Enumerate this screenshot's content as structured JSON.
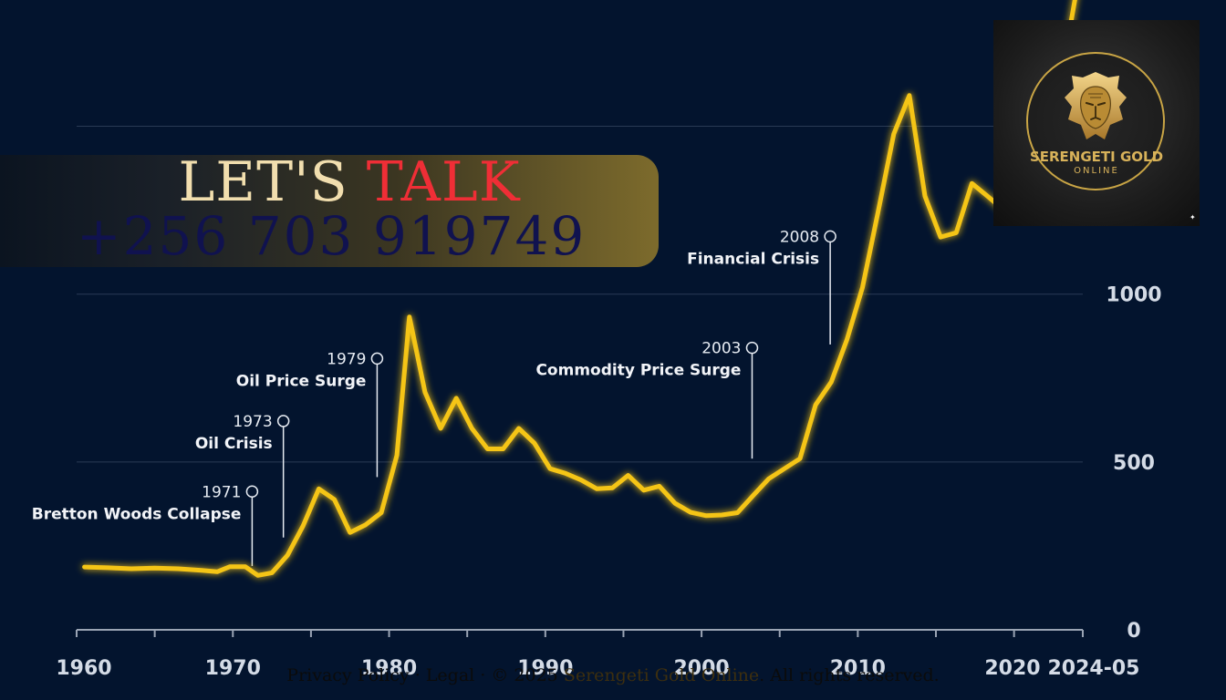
{
  "chart_data": {
    "type": "line",
    "title": "",
    "xlabel": "",
    "ylabel": "",
    "xlim": [
      1960,
      2024.4
    ],
    "ylim": [
      0,
      1500
    ],
    "x_ticks": [
      {
        "value": 1960,
        "label": "1960"
      },
      {
        "value": 1970,
        "label": "1970"
      },
      {
        "value": 1980,
        "label": "1980"
      },
      {
        "value": 1990,
        "label": "1990"
      },
      {
        "value": 2000,
        "label": "2000"
      },
      {
        "value": 2010,
        "label": "2010"
      },
      {
        "value": 2020,
        "label": "2020"
      },
      {
        "value": 2024.4,
        "label": "2024-05"
      }
    ],
    "y_ticks": [
      {
        "value": 0,
        "label": "0"
      },
      {
        "value": 500,
        "label": "500"
      },
      {
        "value": 1000,
        "label": "1000"
      }
    ],
    "grid": true,
    "line_color": "#f5c518",
    "series": [
      {
        "values": [
          [
            1960.5,
            187
          ],
          [
            1962,
            185
          ],
          [
            1963.5,
            182
          ],
          [
            1965,
            184
          ],
          [
            1966.5,
            182
          ],
          [
            1968,
            177
          ],
          [
            1969,
            173
          ],
          [
            1969.8,
            188
          ],
          [
            1970.8,
            188
          ],
          [
            1971.6,
            162
          ],
          [
            1972.5,
            170
          ],
          [
            1973.5,
            222
          ],
          [
            1974.5,
            310
          ],
          [
            1975.5,
            420
          ],
          [
            1976.5,
            388
          ],
          [
            1977.5,
            290
          ],
          [
            1978.5,
            313
          ],
          [
            1979.5,
            349
          ],
          [
            1980.5,
            520
          ],
          [
            1981.3,
            932
          ],
          [
            1982.3,
            708
          ],
          [
            1983.3,
            600
          ],
          [
            1984.3,
            690
          ],
          [
            1985.3,
            600
          ],
          [
            1986.3,
            539
          ],
          [
            1987.3,
            539
          ],
          [
            1988.3,
            600
          ],
          [
            1989.3,
            556
          ],
          [
            1990.3,
            480
          ],
          [
            1991.3,
            466
          ],
          [
            1992.3,
            446
          ],
          [
            1993.3,
            420
          ],
          [
            1994.3,
            423
          ],
          [
            1995.3,
            460
          ],
          [
            1996.3,
            416
          ],
          [
            1997.3,
            428
          ],
          [
            1998.3,
            377
          ],
          [
            1999.3,
            350
          ],
          [
            2000.3,
            340
          ],
          [
            2001.3,
            342
          ],
          [
            2002.3,
            349
          ],
          [
            2003.3,
            400
          ],
          [
            2004.3,
            450
          ],
          [
            2005.3,
            480
          ],
          [
            2006.3,
            510
          ],
          [
            2007.3,
            670
          ],
          [
            2008.3,
            738
          ],
          [
            2009.3,
            864
          ],
          [
            2010.3,
            1020
          ],
          [
            2011.3,
            1245
          ],
          [
            2012.3,
            1477
          ],
          [
            2013.3,
            1592
          ],
          [
            2014.3,
            1292
          ],
          [
            2015.3,
            1170
          ],
          [
            2016.3,
            1183
          ],
          [
            2017.3,
            1330
          ],
          [
            2018.3,
            1292
          ],
          [
            2019.3,
            1252
          ],
          [
            2020.3,
            1385
          ],
          [
            2021.3,
            1510
          ],
          [
            2022.3,
            1628
          ],
          [
            2023.3,
            1720
          ],
          [
            2024.4,
            2010
          ]
        ]
      }
    ],
    "annotations": [
      {
        "x": 1971,
        "y": 412,
        "year": "1971",
        "event": "Bretton Woods Collapse",
        "marker_x": 1971.1,
        "marker_y": 190
      },
      {
        "x": 1973,
        "y": 622,
        "year": "1973",
        "event": "Oil Crisis",
        "marker_x": 1973.2,
        "marker_y": 275
      },
      {
        "x": 1979,
        "y": 808,
        "year": "1979",
        "event": "Oil Price Surge",
        "marker_x": 1979.2,
        "marker_y": 455
      },
      {
        "x": 2003,
        "y": 840,
        "year": "2003",
        "event": "Commodity Price Surge",
        "marker_x": 2003.1,
        "marker_y": 510
      },
      {
        "x": 2008,
        "y": 1172,
        "year": "2008",
        "event": "Financial Crisis",
        "marker_x": 2008.1,
        "marker_y": 850
      }
    ]
  },
  "banner": {
    "lets": "LET'S",
    "talk": "TALK",
    "phone": "+256 703 919749"
  },
  "logo": {
    "name": "SERENGETI GOLD",
    "sub": "ONLINE",
    "icon": "lion-head-icon",
    "gold": "#d8b25a"
  },
  "footer": {
    "privacy": "Privacy Policy",
    "sep1": " · ",
    "legal": "Legal",
    "sep2": " · © 2025 ",
    "brand": "Serengeti Gold Online",
    "rights": ". All rights reserved."
  }
}
